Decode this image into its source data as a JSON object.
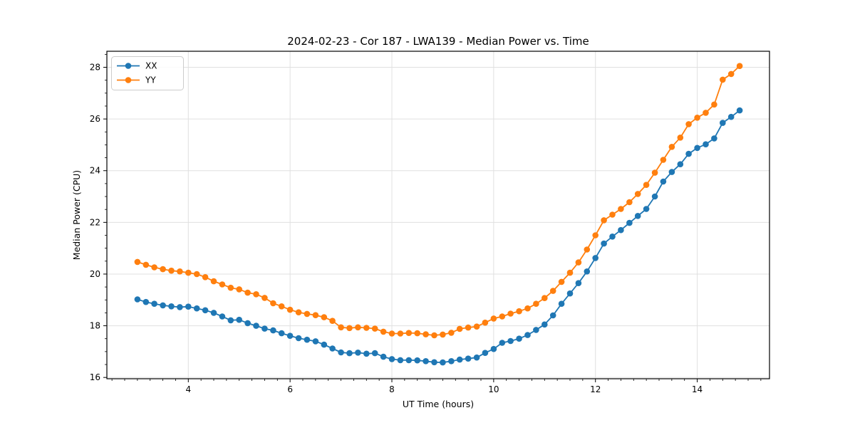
{
  "chart_data": {
    "type": "line",
    "title": "2024-02-23 - Cor 187 - LWA139 - Median Power vs. Time",
    "xlabel": "UT Time (hours)",
    "ylabel": "Median Power (CPU)",
    "xlim": [
      2.4,
      15.42
    ],
    "ylim": [
      15.95,
      28.62
    ],
    "xticks": [
      4,
      6,
      8,
      10,
      12,
      14
    ],
    "yticks": [
      16,
      18,
      20,
      22,
      24,
      26,
      28
    ],
    "x_minor_step": 0.25,
    "y_minor_step": 0.5,
    "grid": true,
    "grid_color": "#e0e0e0",
    "spine_color": "#000000",
    "legend_position": "upper-left",
    "x": [
      3.0,
      3.167,
      3.333,
      3.5,
      3.667,
      3.833,
      4.0,
      4.167,
      4.333,
      4.5,
      4.667,
      4.833,
      5.0,
      5.167,
      5.333,
      5.5,
      5.667,
      5.833,
      6.0,
      6.167,
      6.333,
      6.5,
      6.667,
      6.833,
      7.0,
      7.167,
      7.333,
      7.5,
      7.667,
      7.833,
      8.0,
      8.167,
      8.333,
      8.5,
      8.667,
      8.833,
      9.0,
      9.167,
      9.333,
      9.5,
      9.667,
      9.833,
      10.0,
      10.167,
      10.333,
      10.5,
      10.667,
      10.833,
      11.0,
      11.167,
      11.333,
      11.5,
      11.667,
      11.833,
      12.0,
      12.167,
      12.333,
      12.5,
      12.667,
      12.833,
      13.0,
      13.167,
      13.333,
      13.5,
      13.667,
      13.833,
      14.0,
      14.167,
      14.333,
      14.5,
      14.667,
      14.833
    ],
    "series": [
      {
        "name": "XX",
        "color": "#1f77b4",
        "values": [
          19.02,
          18.92,
          18.85,
          18.79,
          18.75,
          18.72,
          18.74,
          18.67,
          18.6,
          18.5,
          18.36,
          18.21,
          18.23,
          18.1,
          18.0,
          17.89,
          17.82,
          17.71,
          17.61,
          17.52,
          17.46,
          17.4,
          17.27,
          17.12,
          16.97,
          16.94,
          16.96,
          16.92,
          16.94,
          16.8,
          16.71,
          16.67,
          16.67,
          16.66,
          16.63,
          16.59,
          16.58,
          16.63,
          16.69,
          16.73,
          16.77,
          16.95,
          17.1,
          17.34,
          17.41,
          17.5,
          17.64,
          17.84,
          18.05,
          18.4,
          18.85,
          19.25,
          19.65,
          20.1,
          20.62,
          21.18,
          21.45,
          21.7,
          21.98,
          22.25,
          22.52,
          23.0,
          23.58,
          23.95,
          24.25,
          24.65,
          24.88,
          25.02,
          25.25,
          25.85,
          26.08,
          26.33
        ]
      },
      {
        "name": "YY",
        "color": "#ff7f0e",
        "values": [
          20.47,
          20.36,
          20.26,
          20.19,
          20.13,
          20.1,
          20.05,
          20.0,
          19.88,
          19.72,
          19.6,
          19.47,
          19.41,
          19.28,
          19.22,
          19.08,
          18.87,
          18.75,
          18.62,
          18.52,
          18.46,
          18.41,
          18.33,
          18.19,
          17.94,
          17.91,
          17.94,
          17.92,
          17.89,
          17.77,
          17.7,
          17.7,
          17.72,
          17.71,
          17.67,
          17.63,
          17.66,
          17.73,
          17.88,
          17.93,
          17.97,
          18.12,
          18.28,
          18.36,
          18.47,
          18.56,
          18.67,
          18.85,
          19.07,
          19.35,
          19.7,
          20.05,
          20.45,
          20.95,
          21.5,
          22.08,
          22.3,
          22.52,
          22.78,
          23.1,
          23.45,
          23.92,
          24.42,
          24.92,
          25.28,
          25.8,
          26.05,
          26.24,
          26.56,
          27.52,
          27.74,
          28.05
        ]
      }
    ]
  }
}
